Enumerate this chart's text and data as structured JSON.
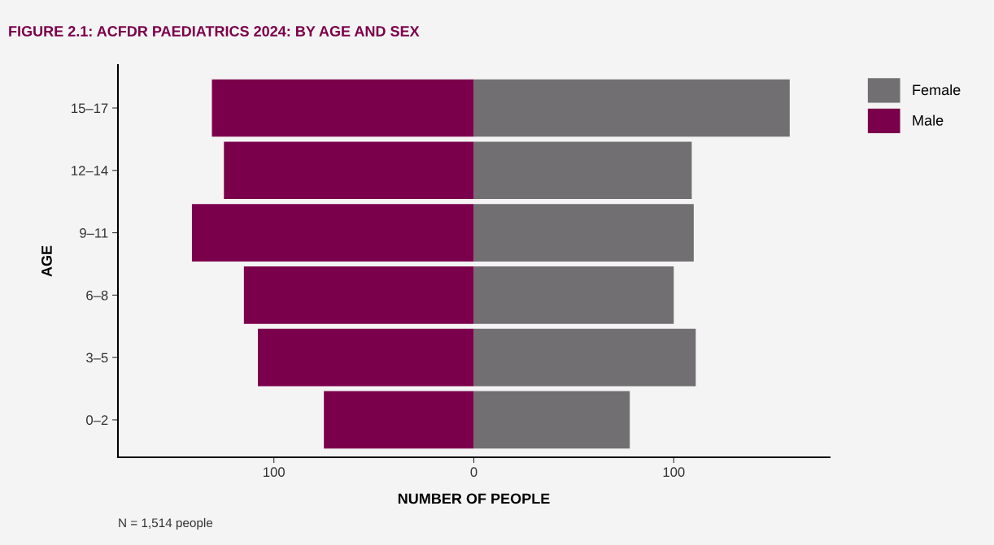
{
  "chart_data": {
    "type": "bar",
    "orientation": "horizontal",
    "stacked": true,
    "title": "FIGURE 2.1: ACFDR PAEDIATRICS 2024: BY AGE AND SEX",
    "xlabel": "NUMBER OF PEOPLE",
    "ylabel": "AGE",
    "categories": [
      "15–17",
      "12–14",
      "9–11",
      "6–8",
      "3–5",
      "0–2"
    ],
    "series": [
      {
        "name": "Female",
        "color": "#716f71",
        "values": [
          158,
          109,
          110,
          100,
          111,
          78
        ]
      },
      {
        "name": "Male",
        "color": "#7b004b",
        "values": [
          -131,
          -125,
          -141,
          -115,
          -108,
          -75
        ]
      }
    ],
    "xlim": [
      -178,
      178
    ],
    "xticks": [
      {
        "value": -100,
        "label": "100"
      },
      0,
      100
    ],
    "grid": false,
    "legend": "right",
    "annotations": [
      "N = 1,514 people"
    ]
  }
}
